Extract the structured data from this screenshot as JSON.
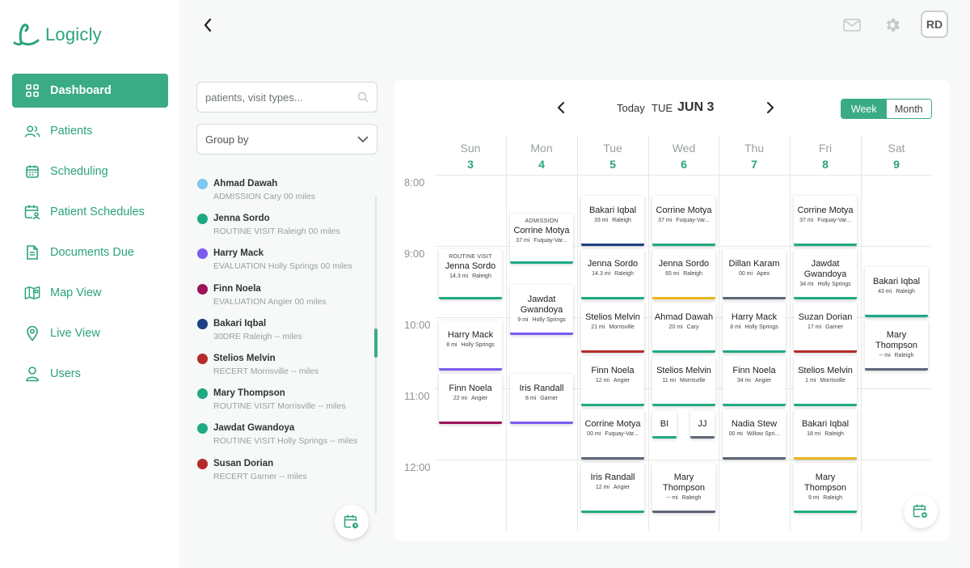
{
  "app": {
    "name": "Logicly",
    "brand_color": "#2aa37e"
  },
  "sidebar": {
    "items": [
      {
        "label": "Dashboard",
        "icon": "grid-icon",
        "active": true
      },
      {
        "label": "Patients",
        "icon": "users-icon",
        "active": false
      },
      {
        "label": "Scheduling",
        "icon": "calendar-icon",
        "active": false
      },
      {
        "label": "Patient Schedules",
        "icon": "calendar-user-icon",
        "active": false
      },
      {
        "label": "Documents Due",
        "icon": "document-icon",
        "active": false
      },
      {
        "label": "Map View",
        "icon": "map-icon",
        "active": false
      },
      {
        "label": "Live View",
        "icon": "location-pin-icon",
        "active": false
      },
      {
        "label": "Users",
        "icon": "user-icon",
        "active": false
      }
    ]
  },
  "header": {
    "avatar_initials": "RD"
  },
  "search": {
    "placeholder": "patients, visit types..."
  },
  "groupby": {
    "label": "Group by"
  },
  "patients": [
    {
      "name": "Ahmad Dawah",
      "info": "ADMISSION Cary 00 miles",
      "color": "#7cc8f0"
    },
    {
      "name": "Jenna Sordo",
      "info": "ROUTINE VISIT Raleigh 00 miles",
      "color": "#1faa84"
    },
    {
      "name": "Harry Mack",
      "info": "EVALUATION Holly Springs 00 miles",
      "color": "#7b5cf0"
    },
    {
      "name": "Finn Noela",
      "info": "EVALUATION Angier 00 miles",
      "color": "#9c1459"
    },
    {
      "name": "Bakari Iqbal",
      "info": "30DRE Raleigh -- miles",
      "color": "#1e3f86"
    },
    {
      "name": "Stelios Melvin",
      "info": "RECERT Morrisville -- miles",
      "color": "#b42a2a"
    },
    {
      "name": "Mary Thompson",
      "info": "ROUTINE VISIT Morrisville -- miles",
      "color": "#1faa84"
    },
    {
      "name": "Jawdat Gwandoya",
      "info": "ROUTINE VISIT Holly Springs -- miles",
      "color": "#1faa84"
    },
    {
      "name": "Susan Dorian",
      "info": "RECERT Garner -- miles",
      "color": "#b42a2a"
    }
  ],
  "calendar": {
    "today_label": "Today",
    "dow": "TUE",
    "date": "JUN 3",
    "views": {
      "week": "Week",
      "month": "Month",
      "selected": "week"
    },
    "days": [
      {
        "name": "Sun",
        "num": "3"
      },
      {
        "name": "Mon",
        "num": "4"
      },
      {
        "name": "Tue",
        "num": "5"
      },
      {
        "name": "Wed",
        "num": "6"
      },
      {
        "name": "Thu",
        "num": "7"
      },
      {
        "name": "Fri",
        "num": "8"
      },
      {
        "name": "Sat",
        "num": "9"
      }
    ],
    "times": [
      "8:00",
      "9:00",
      "10:00",
      "11:00",
      "12:00"
    ],
    "events": [
      {
        "day": 0,
        "start": "9:00",
        "type": "ROUTINE VISIT",
        "name": "Jenna Sordo",
        "miles": "14.3 mi",
        "city": "Raleigh",
        "bar": "#1faa84"
      },
      {
        "day": 0,
        "start": "10:00",
        "name": "Harry Mack",
        "miles": "8 mi",
        "city": "Holly Springs",
        "bar": "#7b5cf0"
      },
      {
        "day": 0,
        "start": "10:45",
        "name": "Finn Noela",
        "miles": "22 mi",
        "city": "Angier",
        "bar": "#9c1459"
      },
      {
        "day": 1,
        "start": "8:30",
        "type": "ADMISSION",
        "name": "Corrine Motya",
        "miles": "37 mi",
        "city": "Fuquay-Var...",
        "bar": "#1faa84"
      },
      {
        "day": 1,
        "start": "9:30",
        "name": "Jawdat Gwandoya",
        "miles": "9 mi",
        "city": "Holly Springs",
        "bar": "#7b5cf0"
      },
      {
        "day": 1,
        "start": "10:45",
        "name": "Iris Randall",
        "miles": "8 mi",
        "city": "Garner",
        "bar": "#7b5cf0"
      },
      {
        "day": 2,
        "start": "8:15",
        "name": "Bakari Iqbal",
        "miles": "33 mi",
        "city": "Raleigh",
        "bar": "#1e3f86"
      },
      {
        "day": 2,
        "start": "9:00",
        "name": "Jenna Sordo",
        "miles": "14.3 mi",
        "city": "Raleigh",
        "bar": "#1faa84"
      },
      {
        "day": 2,
        "start": "9:45",
        "name": "Stelios Melvin",
        "miles": "21 mi",
        "city": "Morrisville",
        "bar": "#b42a2a"
      },
      {
        "day": 2,
        "start": "10:30",
        "name": "Finn Noela",
        "miles": "12 mi",
        "city": "Angier",
        "bar": "#1faa84"
      },
      {
        "day": 2,
        "start": "11:15",
        "name": "Corrine Motya",
        "miles": "00 mi",
        "city": "Fuquay-Var...",
        "bar": "#5f6679"
      },
      {
        "day": 2,
        "start": "12:00",
        "name": "Iris Randall",
        "miles": "12 mi",
        "city": "Angier",
        "bar": "#1faa84"
      },
      {
        "day": 3,
        "start": "8:15",
        "name": "Corrine Motya",
        "miles": "37 mi",
        "city": "Fuquay-Var...",
        "bar": "#1faa84"
      },
      {
        "day": 3,
        "start": "9:00",
        "name": "Jenna Sordo",
        "miles": "65 mi",
        "city": "Raleigh",
        "bar": "#e8b720"
      },
      {
        "day": 3,
        "start": "9:45",
        "name": "Ahmad Dawah",
        "miles": "20 mi",
        "city": "Cary",
        "bar": "#1faa84"
      },
      {
        "day": 3,
        "start": "10:30",
        "name": "Stelios Melvin",
        "miles": "11 mi",
        "city": "Morrisville",
        "bar": "#1faa84"
      },
      {
        "day": 3,
        "start": "12:00",
        "name": "Mary Thompson",
        "miles": "-- mi",
        "city": "Raleigh",
        "bar": "#5f6679"
      },
      {
        "day": 4,
        "start": "9:00",
        "name": "Dillan Karam",
        "miles": "00 mi",
        "city": "Apex",
        "bar": "#5f6679"
      },
      {
        "day": 4,
        "start": "9:45",
        "name": "Harry Mack",
        "miles": "8 mi",
        "city": "Holly Springs",
        "bar": "#1faa84"
      },
      {
        "day": 4,
        "start": "10:30",
        "name": "Finn Noela",
        "miles": "34 mi",
        "city": "Angier",
        "bar": "#1faa84"
      },
      {
        "day": 4,
        "start": "11:15",
        "name": "Nadia Stew",
        "miles": "00 mi",
        "city": "Willow Spri...",
        "bar": "#5f6679"
      },
      {
        "day": 5,
        "start": "8:15",
        "name": "Corrine Motya",
        "miles": "37 mi",
        "city": "Fuquay-Var...",
        "bar": "#1faa84"
      },
      {
        "day": 5,
        "start": "9:00",
        "name": "Jawdat Gwandoya",
        "miles": "34 mi",
        "city": "Holly Springs",
        "bar": "#1faa84"
      },
      {
        "day": 5,
        "start": "9:45",
        "name": "Suzan Dorian",
        "miles": "17 mi",
        "city": "Garner",
        "bar": "#b42a2a"
      },
      {
        "day": 5,
        "start": "10:30",
        "name": "Stelios Melvin",
        "miles": "1 mi",
        "city": "Morrisville",
        "bar": "#1faa84"
      },
      {
        "day": 5,
        "start": "11:15",
        "name": "Bakari Iqbal",
        "miles": "18 mi",
        "city": "Raleigh",
        "bar": "#e8b720"
      },
      {
        "day": 5,
        "start": "12:00",
        "name": "Mary Thompson",
        "miles": "9 mi",
        "city": "Raleigh",
        "bar": "#1faa84"
      },
      {
        "day": 6,
        "start": "9:15",
        "name": "Bakari Iqbal",
        "miles": "43 mi",
        "city": "Raleigh",
        "bar": "#1faa84"
      },
      {
        "day": 6,
        "start": "10:00",
        "name": "Mary Thompson",
        "miles": "-- mi",
        "city": "Raleigh",
        "bar": "#5f6679"
      }
    ],
    "mini_events": [
      {
        "day": 3,
        "start": "11:15",
        "initials": "BI",
        "bar": "#1faa84"
      },
      {
        "day": 3,
        "start": "11:15",
        "initials": "JJ",
        "bar": "#5f6679"
      }
    ]
  }
}
